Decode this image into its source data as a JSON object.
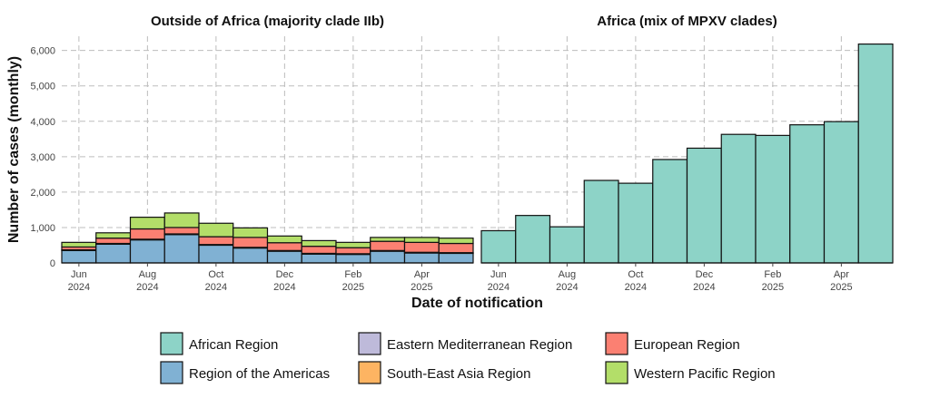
{
  "chart_data": {
    "type": "bar",
    "ylabel": "Number of cases (monthly)",
    "xlabel": "Date of notification",
    "ylim": [
      0,
      6400
    ],
    "y_ticks": [
      "0",
      "1,000",
      "2,000",
      "3,000",
      "4,000",
      "5,000",
      "6,000"
    ],
    "y_tick_values": [
      0,
      1000,
      2000,
      3000,
      4000,
      5000,
      6000
    ],
    "grid": true,
    "legend_position": "bottom",
    "months": [
      "2024-06",
      "2024-07",
      "2024-08",
      "2024-09",
      "2024-10",
      "2024-11",
      "2024-12",
      "2025-01",
      "2025-02",
      "2025-03",
      "2025-04",
      "2025-05"
    ],
    "x_tick_labels": [
      {
        "month": "2024-06",
        "line1": "Jun",
        "line2": "2024"
      },
      {
        "month": "2024-08",
        "line1": "Aug",
        "line2": "2024"
      },
      {
        "month": "2024-10",
        "line1": "Oct",
        "line2": "2024"
      },
      {
        "month": "2024-12",
        "line1": "Dec",
        "line2": "2024"
      },
      {
        "month": "2025-02",
        "line1": "Feb",
        "line2": "2025"
      },
      {
        "month": "2025-04",
        "line1": "Apr",
        "line2": "2025"
      }
    ],
    "series_colors": {
      "African Region": "#8dd3c7",
      "Eastern Mediterranean Region": "#bebada",
      "European Region": "#fb8072",
      "Region of the Americas": "#80b1d3",
      "South-East Asia Region": "#fdb462",
      "Western Pacific Region": "#b3de69"
    },
    "panels": [
      {
        "title": "Outside of Africa (majority clade IIb)",
        "stack_order": [
          "Region of the Americas",
          "Eastern Mediterranean Region",
          "South-East Asia Region",
          "European Region",
          "Western Pacific Region"
        ],
        "series": [
          {
            "name": "Region of the Americas",
            "values": [
              350,
              530,
              650,
              800,
              500,
              420,
              330,
              250,
              240,
              330,
              280,
              270
            ]
          },
          {
            "name": "Eastern Mediterranean Region",
            "values": [
              10,
              10,
              10,
              10,
              10,
              10,
              10,
              10,
              10,
              10,
              10,
              10
            ]
          },
          {
            "name": "South-East Asia Region",
            "values": [
              10,
              10,
              10,
              10,
              10,
              10,
              10,
              10,
              10,
              10,
              10,
              10
            ]
          },
          {
            "name": "European Region",
            "values": [
              80,
              150,
              290,
              180,
              220,
              280,
              220,
              200,
              170,
              260,
              280,
              260
            ]
          },
          {
            "name": "Western Pacific Region",
            "values": [
              130,
              150,
              330,
              410,
              380,
              270,
              190,
              160,
              150,
              110,
              140,
              150
            ]
          }
        ]
      },
      {
        "title": "Africa (mix of MPXV clades)",
        "stack_order": [
          "African Region"
        ],
        "series": [
          {
            "name": "African Region",
            "values": [
              910,
              1340,
              1020,
              2330,
              2250,
              2920,
              3240,
              3630,
              3600,
              3900,
              3990,
              6180
            ]
          }
        ]
      }
    ],
    "legend": [
      [
        "African Region",
        "Eastern Mediterranean Region",
        "European Region"
      ],
      [
        "Region of the Americas",
        "South-East Asia Region",
        "Western Pacific Region"
      ]
    ]
  }
}
